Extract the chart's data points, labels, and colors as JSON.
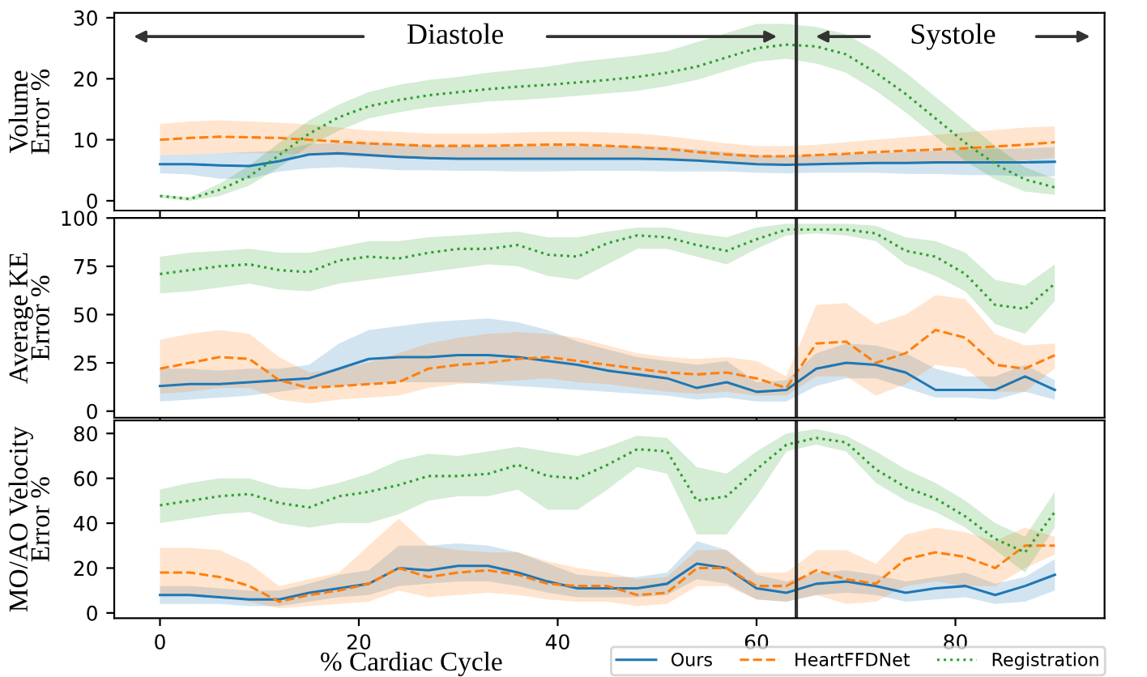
{
  "chart_data": [
    {
      "type": "line",
      "ylabel": "Volume\nError %",
      "xlim": [
        -4.6,
        95
      ],
      "xticks": [
        0,
        20,
        40,
        60,
        80
      ],
      "ylim": [
        -1.6,
        30.8
      ],
      "yticks": [
        0,
        10,
        20,
        30
      ],
      "tick_labels": "y",
      "grid": false,
      "x": [
        0,
        3,
        6,
        9,
        12,
        15,
        18,
        21,
        24,
        27,
        30,
        33,
        36,
        39,
        42,
        45,
        48,
        51,
        54,
        57,
        60,
        63,
        66,
        69,
        72,
        75,
        78,
        81,
        84,
        87,
        90
      ],
      "ref_lines": [
        {
          "axis": "x",
          "value": 64,
          "color": "#333333",
          "line_style": "solid"
        }
      ],
      "annotations": [
        "Diastole",
        "Systole"
      ],
      "series": [
        {
          "color": "#1f77b4",
          "line_style": "solid",
          "values": [
            6.0,
            6.0,
            5.8,
            5.7,
            6.5,
            7.6,
            7.8,
            7.5,
            7.2,
            7.0,
            6.9,
            6.9,
            6.9,
            6.9,
            6.9,
            6.9,
            6.9,
            6.8,
            6.6,
            6.3,
            6.0,
            5.9,
            6.0,
            6.1,
            6.2,
            6.2,
            6.3,
            6.3,
            6.3,
            6.3,
            6.4
          ],
          "lower": [
            4.5,
            4.3,
            3.6,
            3.6,
            4.8,
            5.3,
            5.5,
            5.3,
            5.0,
            5.0,
            4.9,
            4.9,
            4.8,
            4.8,
            4.9,
            4.9,
            4.9,
            4.8,
            4.8,
            4.8,
            4.6,
            4.5,
            4.6,
            4.6,
            4.6,
            4.4,
            4.4,
            4.2,
            4.2,
            4.0,
            4.0
          ],
          "upper": [
            7.5,
            7.6,
            7.8,
            8.0,
            8.2,
            9.3,
            9.5,
            9.5,
            9.3,
            9.0,
            8.9,
            8.9,
            9.0,
            9.0,
            9.0,
            9.0,
            9.0,
            8.8,
            8.4,
            8.0,
            7.5,
            7.4,
            7.5,
            7.6,
            7.8,
            8.0,
            8.2,
            8.4,
            8.5,
            8.6,
            8.8
          ]
        },
        {
          "color": "#ff7f0e",
          "line_style": "dashed",
          "values": [
            10.0,
            10.3,
            10.5,
            10.4,
            10.3,
            10.0,
            9.7,
            9.4,
            9.2,
            9.0,
            9.0,
            9.0,
            9.1,
            9.2,
            9.2,
            9.0,
            8.8,
            8.5,
            8.0,
            7.6,
            7.3,
            7.3,
            7.5,
            7.7,
            8.0,
            8.2,
            8.4,
            8.6,
            8.9,
            9.2,
            9.6
          ],
          "lower": [
            7.5,
            7.6,
            7.8,
            7.8,
            7.8,
            7.6,
            7.4,
            7.2,
            7.0,
            7.0,
            7.0,
            7.0,
            7.0,
            7.0,
            7.0,
            7.0,
            6.8,
            6.6,
            6.4,
            6.2,
            6.0,
            6.0,
            6.0,
            6.0,
            6.0,
            6.0,
            6.0,
            6.0,
            6.2,
            6.6,
            7.0
          ],
          "upper": [
            12.6,
            13.0,
            13.2,
            13.0,
            12.8,
            12.5,
            12.0,
            11.5,
            11.3,
            11.0,
            11.0,
            11.0,
            11.2,
            11.3,
            11.3,
            11.2,
            11.0,
            10.6,
            10.0,
            9.4,
            9.0,
            9.0,
            9.2,
            9.6,
            10.0,
            10.4,
            10.8,
            11.2,
            11.6,
            12.0,
            12.2
          ]
        },
        {
          "color": "#2ca02c",
          "line_style": "dotted",
          "values": [
            0.8,
            0.3,
            1.8,
            4.0,
            7.5,
            11.0,
            13.7,
            15.5,
            16.5,
            17.3,
            17.8,
            18.3,
            18.7,
            19.0,
            19.4,
            19.8,
            20.3,
            21.0,
            22.0,
            23.5,
            25.0,
            25.6,
            25.3,
            24.0,
            21.0,
            17.5,
            13.5,
            9.5,
            6.0,
            3.5,
            2.2
          ],
          "lower": [
            0.5,
            0.0,
            0.8,
            2.5,
            5.5,
            9.0,
            11.5,
            13.5,
            14.5,
            15.3,
            15.8,
            16.3,
            16.5,
            16.8,
            17.2,
            17.6,
            18.0,
            18.8,
            19.8,
            21.3,
            22.8,
            23.3,
            22.5,
            21.0,
            18.0,
            14.5,
            10.5,
            6.5,
            3.5,
            1.5,
            1.0
          ],
          "upper": [
            1.0,
            0.6,
            2.8,
            5.8,
            9.5,
            13.2,
            15.8,
            17.8,
            19.0,
            19.8,
            20.3,
            21.0,
            21.5,
            22.0,
            22.8,
            23.3,
            23.8,
            24.5,
            26.0,
            27.5,
            29.0,
            29.0,
            28.5,
            27.3,
            24.5,
            21.0,
            17.0,
            13.0,
            9.0,
            5.5,
            3.6
          ]
        }
      ]
    },
    {
      "type": "line",
      "ylabel": "Average KE\nError %",
      "xlim": [
        -4.6,
        95
      ],
      "xticks": [
        0,
        20,
        40,
        60,
        80
      ],
      "ylim": [
        -3.4,
        100
      ],
      "yticks": [
        0,
        25,
        50,
        75,
        100
      ],
      "tick_labels": "y",
      "grid": false,
      "x": [
        0,
        3,
        6,
        9,
        12,
        15,
        18,
        21,
        24,
        27,
        30,
        33,
        36,
        39,
        42,
        45,
        48,
        51,
        54,
        57,
        60,
        63,
        66,
        69,
        72,
        75,
        78,
        81,
        84,
        87,
        90
      ],
      "ref_lines": [
        {
          "axis": "x",
          "value": 64,
          "color": "#333333",
          "line_style": "solid"
        }
      ],
      "series": [
        {
          "color": "#1f77b4",
          "line_style": "solid",
          "values": [
            13,
            14,
            14,
            15,
            16,
            17,
            22,
            27,
            28,
            28,
            29,
            29,
            28,
            26,
            24,
            21,
            19,
            17,
            12,
            15,
            10,
            11,
            22,
            25,
            24,
            20,
            11,
            11,
            11,
            18,
            11
          ],
          "lower": [
            5,
            6,
            7,
            8,
            10,
            12,
            13,
            14,
            15,
            15,
            15,
            14,
            13,
            12,
            11,
            10,
            9,
            8,
            6,
            7,
            5,
            5,
            13,
            17,
            17,
            12,
            7,
            7,
            6,
            10,
            6
          ],
          "upper": [
            22,
            22,
            21,
            22,
            22,
            24,
            35,
            42,
            44,
            46,
            47,
            48,
            46,
            42,
            36,
            32,
            28,
            26,
            24,
            26,
            15,
            16,
            30,
            35,
            34,
            30,
            22,
            18,
            18,
            24,
            16
          ]
        },
        {
          "color": "#ff7f0e",
          "line_style": "dashed",
          "values": [
            22,
            25,
            28,
            27,
            16,
            12,
            13,
            14,
            15,
            22,
            24,
            25,
            27,
            28,
            26,
            24,
            22,
            20,
            19,
            20,
            17,
            12,
            35,
            36,
            25,
            30,
            42,
            38,
            24,
            22,
            29
          ],
          "lower": [
            9,
            10,
            12,
            12,
            6,
            4,
            6,
            7,
            8,
            12,
            14,
            15,
            16,
            17,
            15,
            14,
            12,
            10,
            9,
            10,
            8,
            8,
            18,
            18,
            8,
            14,
            24,
            22,
            10,
            10,
            22
          ],
          "upper": [
            37,
            40,
            42,
            40,
            28,
            20,
            22,
            25,
            30,
            35,
            38,
            40,
            41,
            40,
            38,
            34,
            30,
            28,
            27,
            28,
            26,
            18,
            55,
            56,
            45,
            50,
            60,
            58,
            40,
            34,
            35
          ]
        },
        {
          "color": "#2ca02c",
          "line_style": "dotted",
          "values": [
            71,
            73,
            75,
            76,
            73,
            72,
            78,
            80,
            79,
            82,
            84,
            84,
            86,
            81,
            80,
            87,
            91,
            90,
            86,
            83,
            89,
            94,
            94,
            94,
            92,
            83,
            80,
            71,
            55,
            53,
            66
          ],
          "lower": [
            61,
            62,
            64,
            66,
            63,
            62,
            66,
            68,
            70,
            72,
            74,
            76,
            75,
            70,
            68,
            76,
            84,
            84,
            80,
            76,
            84,
            91,
            92,
            91,
            88,
            76,
            70,
            62,
            45,
            40,
            57
          ],
          "upper": [
            80,
            82,
            83,
            84,
            82,
            82,
            85,
            88,
            88,
            90,
            91,
            92,
            93,
            90,
            90,
            93,
            95,
            95,
            92,
            90,
            95,
            97,
            97,
            97,
            96,
            90,
            88,
            82,
            68,
            65,
            76
          ]
        }
      ]
    },
    {
      "type": "line",
      "ylabel": "MO/AO Velocity\nError %",
      "xlabel": "% Cardiac Cycle",
      "xlim": [
        -4.6,
        95
      ],
      "xticks": [
        0,
        20,
        40,
        60,
        80
      ],
      "ylim": [
        -2.3,
        85.8
      ],
      "yticks": [
        0,
        20,
        40,
        60,
        80
      ],
      "grid": false,
      "legend": "bottom right",
      "x": [
        0,
        3,
        6,
        9,
        12,
        15,
        18,
        21,
        24,
        27,
        30,
        33,
        36,
        39,
        42,
        45,
        48,
        51,
        54,
        57,
        60,
        63,
        66,
        69,
        72,
        75,
        78,
        81,
        84,
        87,
        90
      ],
      "ref_lines": [
        {
          "axis": "x",
          "value": 64,
          "color": "#333333",
          "line_style": "solid"
        }
      ],
      "series": [
        {
          "name": "Ours",
          "color": "#1f77b4",
          "line_style": "solid",
          "values": [
            8,
            8,
            7,
            6,
            6,
            9,
            11,
            13,
            20,
            19,
            21,
            21,
            18,
            14,
            11,
            11,
            11,
            13,
            22,
            20,
            11,
            9,
            13,
            14,
            12,
            9,
            11,
            12,
            8,
            12,
            17
          ],
          "lower": [
            4,
            4,
            4,
            3,
            3,
            5,
            7,
            8,
            12,
            13,
            14,
            14,
            12,
            9,
            7,
            7,
            7,
            8,
            15,
            13,
            6,
            5,
            8,
            9,
            8,
            5,
            6,
            7,
            4,
            5,
            10
          ],
          "upper": [
            12,
            12,
            11,
            10,
            10,
            13,
            17,
            19,
            30,
            30,
            31,
            30,
            27,
            22,
            17,
            16,
            16,
            18,
            32,
            28,
            17,
            14,
            18,
            19,
            17,
            14,
            16,
            18,
            13,
            16,
            24
          ]
        },
        {
          "name": "HeartFFDNet",
          "color": "#ff7f0e",
          "line_style": "dashed",
          "values": [
            18,
            18,
            16,
            12,
            5,
            8,
            10,
            13,
            20,
            16,
            18,
            19,
            17,
            13,
            12,
            12,
            8,
            9,
            20,
            20,
            12,
            12,
            19,
            15,
            13,
            24,
            27,
            25,
            20,
            30,
            30
          ],
          "lower": [
            8,
            8,
            7,
            5,
            2,
            3,
            4,
            5,
            10,
            7,
            8,
            9,
            8,
            6,
            5,
            5,
            3,
            4,
            12,
            12,
            6,
            5,
            8,
            4,
            5,
            12,
            14,
            12,
            12,
            20,
            26
          ],
          "upper": [
            29,
            29,
            28,
            22,
            12,
            15,
            18,
            30,
            42,
            30,
            28,
            27,
            27,
            23,
            20,
            18,
            15,
            16,
            28,
            28,
            18,
            18,
            28,
            28,
            22,
            35,
            38,
            36,
            32,
            38,
            34
          ]
        },
        {
          "name": "Registration",
          "color": "#2ca02c",
          "line_style": "dotted",
          "values": [
            48,
            50,
            52,
            53,
            49,
            47,
            52,
            54,
            57,
            61,
            61,
            62,
            66,
            61,
            60,
            66,
            73,
            72,
            50,
            52,
            64,
            75,
            78,
            76,
            64,
            56,
            51,
            43,
            33,
            27,
            45
          ],
          "lower": [
            40,
            42,
            44,
            45,
            40,
            38,
            40,
            40,
            44,
            50,
            52,
            52,
            55,
            46,
            46,
            55,
            65,
            62,
            35,
            35,
            52,
            72,
            75,
            72,
            58,
            50,
            45,
            38,
            28,
            18,
            38
          ],
          "upper": [
            55,
            58,
            60,
            60,
            56,
            55,
            58,
            62,
            68,
            71,
            70,
            72,
            74,
            72,
            70,
            74,
            79,
            78,
            65,
            62,
            72,
            80,
            82,
            79,
            72,
            64,
            58,
            50,
            40,
            34,
            54
          ]
        }
      ]
    }
  ]
}
